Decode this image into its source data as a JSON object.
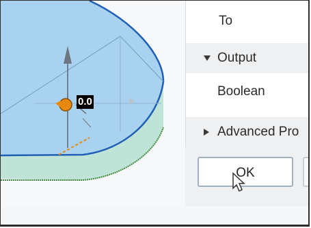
{
  "viewport": {
    "value_label": "0.0",
    "colors": {
      "solid_top": "#a9d3ee",
      "solid_side": "#b9e0d3",
      "edge": "#1f5fb4",
      "gizmo": "#e8890f"
    },
    "icons": [
      "move-gizmo-icon",
      "spin-arrow-icon"
    ]
  },
  "panel": {
    "to_label": "To",
    "output_section": "Output",
    "boolean_label": "Boolean",
    "advanced_section": "Advanced Pro",
    "ok_label": "OK"
  },
  "icons": {
    "cursor": "mouse-cursor-icon",
    "expand": "chevron-down-icon",
    "collapsed": "chevron-right-icon"
  }
}
